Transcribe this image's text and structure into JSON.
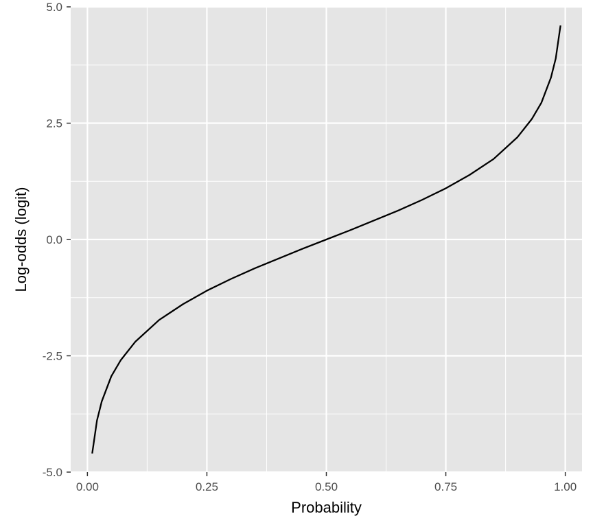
{
  "chart_data": {
    "type": "line",
    "title": "",
    "xlabel": "Probability",
    "ylabel": "Log-odds (logit)",
    "xlim": [
      -0.035,
      1.035
    ],
    "ylim": [
      -5.0,
      5.0
    ],
    "x_ticks": [
      0.0,
      0.25,
      0.5,
      0.75,
      1.0
    ],
    "x_tick_labels": [
      "0.00",
      "0.25",
      "0.50",
      "0.75",
      "1.00"
    ],
    "y_ticks": [
      -5.0,
      -2.5,
      0.0,
      2.5,
      5.0
    ],
    "y_tick_labels": [
      "-5.0",
      "-2.5",
      "0.0",
      "2.5",
      "5.0"
    ],
    "grid": true,
    "background": "#e5e5e5",
    "gridline_color": "#ffffff",
    "line_color": "#000000",
    "series": [
      {
        "x": [
          0.01,
          0.02,
          0.03,
          0.05,
          0.07,
          0.1,
          0.15,
          0.2,
          0.25,
          0.3,
          0.35,
          0.4,
          0.45,
          0.5,
          0.55,
          0.6,
          0.65,
          0.7,
          0.75,
          0.8,
          0.85,
          0.9,
          0.93,
          0.95,
          0.97,
          0.98,
          0.99
        ],
        "y": [
          -4.6,
          -3.89,
          -3.48,
          -2.94,
          -2.59,
          -2.2,
          -1.73,
          -1.39,
          -1.1,
          -0.85,
          -0.62,
          -0.41,
          -0.2,
          0.0,
          0.2,
          0.41,
          0.62,
          0.85,
          1.1,
          1.39,
          1.73,
          2.2,
          2.59,
          2.94,
          3.48,
          3.89,
          4.6
        ]
      }
    ]
  }
}
